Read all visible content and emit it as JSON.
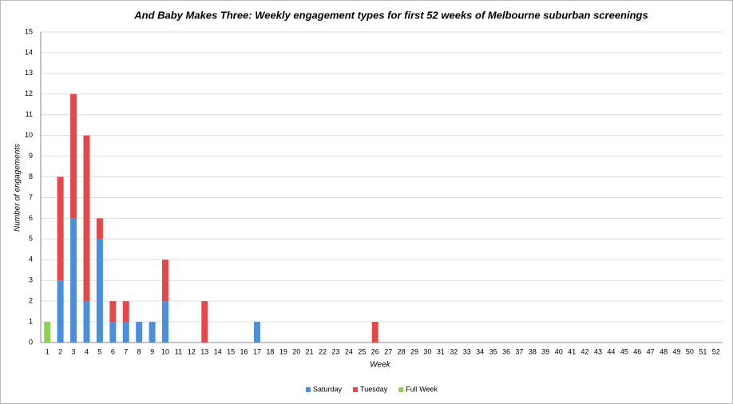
{
  "chart_data": {
    "type": "stacked-bar",
    "title": "And Baby Makes Three: Weekly engagement types for first 52 weeks of Melbourne suburban screenings",
    "x_label": "Week",
    "y_label": "Number of engagements",
    "categories": [
      "1",
      "2",
      "3",
      "4",
      "5",
      "6",
      "7",
      "8",
      "9",
      "10",
      "11",
      "12",
      "13",
      "14",
      "15",
      "16",
      "17",
      "18",
      "19",
      "20",
      "21",
      "22",
      "23",
      "24",
      "25",
      "26",
      "27",
      "28",
      "29",
      "30",
      "31",
      "32",
      "33",
      "34",
      "35",
      "36",
      "37",
      "38",
      "39",
      "40",
      "41",
      "42",
      "43",
      "44",
      "45",
      "46",
      "47",
      "48",
      "49",
      "50",
      "51",
      "52"
    ],
    "series": [
      {
        "name": "Saturday",
        "color": "#4a8fdc",
        "values": [
          0,
          3,
          6,
          2,
          5,
          1,
          1,
          1,
          1,
          2,
          0,
          0,
          0,
          0,
          0,
          0,
          1,
          0,
          0,
          0,
          0,
          0,
          0,
          0,
          0,
          0,
          0,
          0,
          0,
          0,
          0,
          0,
          0,
          0,
          0,
          0,
          0,
          0,
          0,
          0,
          0,
          0,
          0,
          0,
          0,
          0,
          0,
          0,
          0,
          0,
          0,
          0
        ]
      },
      {
        "name": "Tuesday",
        "color": "#e8474a",
        "values": [
          0,
          5,
          6,
          8,
          1,
          1,
          1,
          0,
          0,
          2,
          0,
          0,
          2,
          0,
          0,
          0,
          0,
          0,
          0,
          0,
          0,
          0,
          0,
          0,
          0,
          1,
          0,
          0,
          0,
          0,
          0,
          0,
          0,
          0,
          0,
          0,
          0,
          0,
          0,
          0,
          0,
          0,
          0,
          0,
          0,
          0,
          0,
          0,
          0,
          0,
          0,
          0
        ]
      },
      {
        "name": "Full Week",
        "color": "#8fd14f",
        "values": [
          1,
          0,
          0,
          0,
          0,
          0,
          0,
          0,
          0,
          0,
          0,
          0,
          0,
          0,
          0,
          0,
          0,
          0,
          0,
          0,
          0,
          0,
          0,
          0,
          0,
          0,
          0,
          0,
          0,
          0,
          0,
          0,
          0,
          0,
          0,
          0,
          0,
          0,
          0,
          0,
          0,
          0,
          0,
          0,
          0,
          0,
          0,
          0,
          0,
          0,
          0,
          0
        ]
      }
    ],
    "ylim": [
      0,
      15
    ],
    "yticks": [
      0,
      1,
      2,
      3,
      4,
      5,
      6,
      7,
      8,
      9,
      10,
      11,
      12,
      13,
      14,
      15
    ],
    "grid": true
  }
}
